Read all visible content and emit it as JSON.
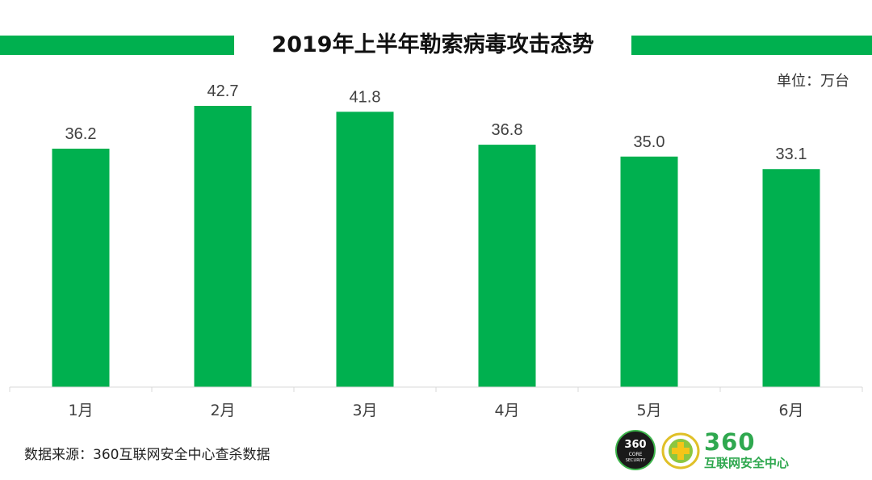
{
  "chart_data": {
    "type": "bar",
    "title": "2019年上半年勒索病毒攻击态势",
    "unit": "单位：万台",
    "categories": [
      "1月",
      "2月",
      "3月",
      "4月",
      "5月",
      "6月"
    ],
    "values": [
      36.2,
      42.7,
      41.8,
      36.8,
      35.0,
      33.1
    ],
    "value_labels": [
      "36.2",
      "42.7",
      "41.8",
      "36.8",
      "35.0",
      "33.1"
    ],
    "ylim": [
      0,
      45
    ],
    "grid": false,
    "legend": "none",
    "bar_color": "#00b04f"
  },
  "source": "数据来源：360互联网安全中心查杀数据",
  "logo": {
    "core_text": "360",
    "core_sub1": "CORE",
    "core_sub2": "SECURITY",
    "brand_number": "360",
    "brand_name": "互联网安全中心"
  },
  "colors": {
    "accent": "#00b04f",
    "brand": "#2fa84f"
  }
}
